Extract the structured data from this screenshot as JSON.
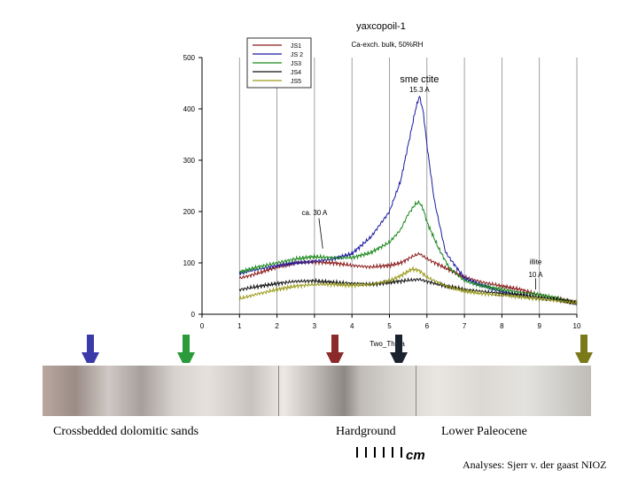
{
  "chart_data": {
    "type": "line",
    "title": "yaxcopoil-1",
    "subtitle": "Ca-exch. bulk, 50%RH",
    "xlabel": "Two_Theta",
    "ylabel": "",
    "xlim": [
      0,
      10
    ],
    "ylim": [
      0,
      500
    ],
    "xticks": [
      "0",
      "1",
      "2",
      "3",
      "4",
      "5",
      "6",
      "7",
      "8",
      "9",
      "10"
    ],
    "yticks": [
      "0",
      "100",
      "200",
      "300",
      "400",
      "500"
    ],
    "grid": "vertical lines",
    "legend_position": "top-left",
    "series": [
      {
        "name": "JS1",
        "color": "#8b1a1a",
        "x": [
          1,
          1.5,
          2,
          2.5,
          3,
          3.5,
          4,
          4.5,
          5,
          5.3,
          5.6,
          5.8,
          6,
          6.5,
          7,
          7.5,
          8,
          8.5,
          9,
          9.5,
          10
        ],
        "y": [
          70,
          80,
          92,
          100,
          102,
          100,
          95,
          92,
          95,
          100,
          112,
          118,
          108,
          90,
          72,
          62,
          55,
          48,
          38,
          30,
          22
        ]
      },
      {
        "name": "JS 2",
        "color": "#1a1aa0",
        "x": [
          1,
          1.5,
          2,
          2.5,
          3,
          3.5,
          4,
          4.5,
          5,
          5.3,
          5.5,
          5.7,
          5.8,
          5.9,
          6,
          6.2,
          6.5,
          7,
          7.5,
          8,
          8.5,
          9,
          9.5,
          10
        ],
        "y": [
          80,
          88,
          95,
          100,
          103,
          108,
          118,
          150,
          200,
          260,
          330,
          400,
          425,
          395,
          330,
          220,
          120,
          70,
          55,
          45,
          38,
          32,
          28,
          22
        ]
      },
      {
        "name": "JS3",
        "color": "#1a8a1a",
        "x": [
          1,
          1.5,
          2,
          2.5,
          3,
          3.5,
          4,
          4.5,
          5,
          5.3,
          5.5,
          5.7,
          5.8,
          5.9,
          6,
          6.3,
          6.6,
          7,
          7.5,
          8,
          8.5,
          9,
          9.5,
          10
        ],
        "y": [
          82,
          92,
          100,
          108,
          112,
          110,
          110,
          120,
          140,
          165,
          195,
          215,
          218,
          205,
          180,
          130,
          90,
          65,
          55,
          48,
          42,
          38,
          30,
          22
        ]
      },
      {
        "name": "JS4",
        "color": "#101010",
        "x": [
          1,
          1.5,
          2,
          2.5,
          3,
          3.5,
          4,
          4.5,
          5,
          5.5,
          5.8,
          6,
          6.5,
          7,
          7.5,
          8,
          8.5,
          9,
          9.5,
          10
        ],
        "y": [
          48,
          54,
          60,
          64,
          65,
          62,
          60,
          58,
          62,
          66,
          68,
          64,
          55,
          48,
          44,
          40,
          37,
          33,
          28,
          22
        ]
      },
      {
        "name": "JS5",
        "color": "#9a9a1a",
        "x": [
          1,
          1.5,
          2,
          2.5,
          3,
          3.5,
          4,
          4.5,
          5,
          5.3,
          5.6,
          5.8,
          6,
          6.5,
          7,
          7.5,
          8,
          8.5,
          9,
          9.5,
          10
        ],
        "y": [
          30,
          40,
          48,
          55,
          58,
          58,
          56,
          58,
          65,
          75,
          88,
          85,
          72,
          55,
          45,
          40,
          37,
          34,
          30,
          26,
          22
        ]
      }
    ],
    "annotations": [
      {
        "text": "sme ctite",
        "x": 5.8,
        "y": 452
      },
      {
        "text": "15.3 A",
        "x": 5.8,
        "y": 433
      },
      {
        "text": "ca. 30 A",
        "x": 3.0,
        "y": 193
      },
      {
        "text": "illite",
        "x": 8.9,
        "y": 97
      },
      {
        "text": "10 A",
        "x": 8.9,
        "y": 72
      }
    ]
  },
  "core_photo": {
    "arrows": [
      {
        "color": "#3a3aa8"
      },
      {
        "color": "#2a9a3a"
      },
      {
        "color": "#8a2a2a"
      },
      {
        "color": "#1a2230"
      },
      {
        "color": "#7a7a1a"
      }
    ],
    "captions": {
      "crossbedded": "Crossbedded dolomitic sands",
      "hardground": "Hardground",
      "paleocene": "Lower Paleocene"
    },
    "scale_label": "cm",
    "credit": "Analyses: Sjerr v. der gaast NIOZ"
  }
}
